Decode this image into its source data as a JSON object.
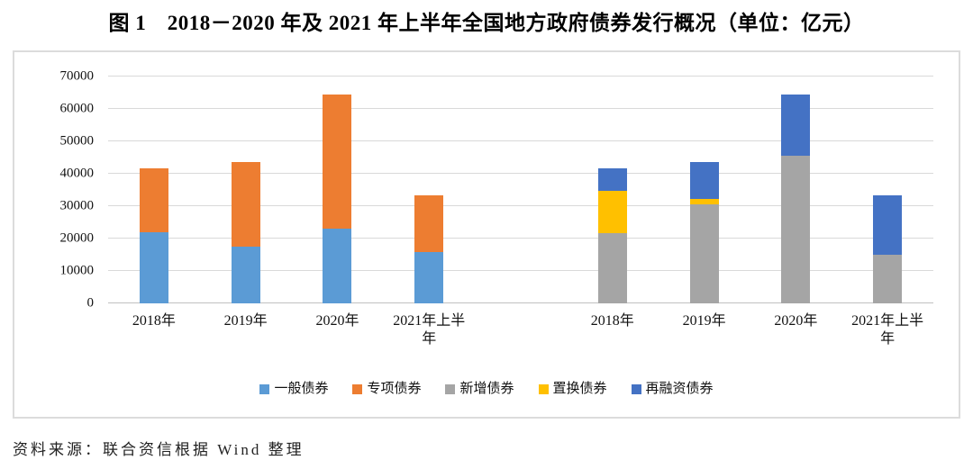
{
  "title": "图 1　2018－2020 年及 2021 年上半年全国地方政府债券发行概况（单位：亿元）",
  "footer": "资料来源：联合资信根据 Wind 整理",
  "chart_data": {
    "type": "bar",
    "stacked": true,
    "unit": "亿元",
    "ylim": [
      0,
      70000
    ],
    "yticks": [
      0,
      10000,
      20000,
      30000,
      40000,
      50000,
      60000,
      70000
    ],
    "grid": true,
    "legend_position": "bottom",
    "legend": [
      {
        "name": "一般债券",
        "color": "#5B9BD5"
      },
      {
        "name": "专项债券",
        "color": "#ED7D31"
      },
      {
        "name": "新增债券",
        "color": "#A5A5A5"
      },
      {
        "name": "置换债券",
        "color": "#FFC000"
      },
      {
        "name": "再融资债券",
        "color": "#4472C4"
      }
    ],
    "groups": [
      {
        "categories": [
          "2018年",
          "2019年",
          "2020年",
          "2021年上半年"
        ],
        "series": [
          {
            "name": "一般债券",
            "color": "#5B9BD5",
            "values": [
              22000,
              17500,
              23000,
              15900
            ]
          },
          {
            "name": "专项债券",
            "color": "#ED7D31",
            "values": [
              19700,
              26100,
              41400,
              17500
            ]
          }
        ]
      },
      {
        "categories": [
          "2018年",
          "2019年",
          "2020年",
          "2021年上半年"
        ],
        "series": [
          {
            "name": "新增债券",
            "color": "#A5A5A5",
            "values": [
              21700,
              30600,
              45500,
              14900
            ]
          },
          {
            "name": "置换债券",
            "color": "#FFC000",
            "values": [
              13100,
              1600,
              0,
              0
            ]
          },
          {
            "name": "再融资债券",
            "color": "#4472C4",
            "values": [
              6900,
              11400,
              18900,
              18500
            ]
          }
        ]
      }
    ]
  }
}
